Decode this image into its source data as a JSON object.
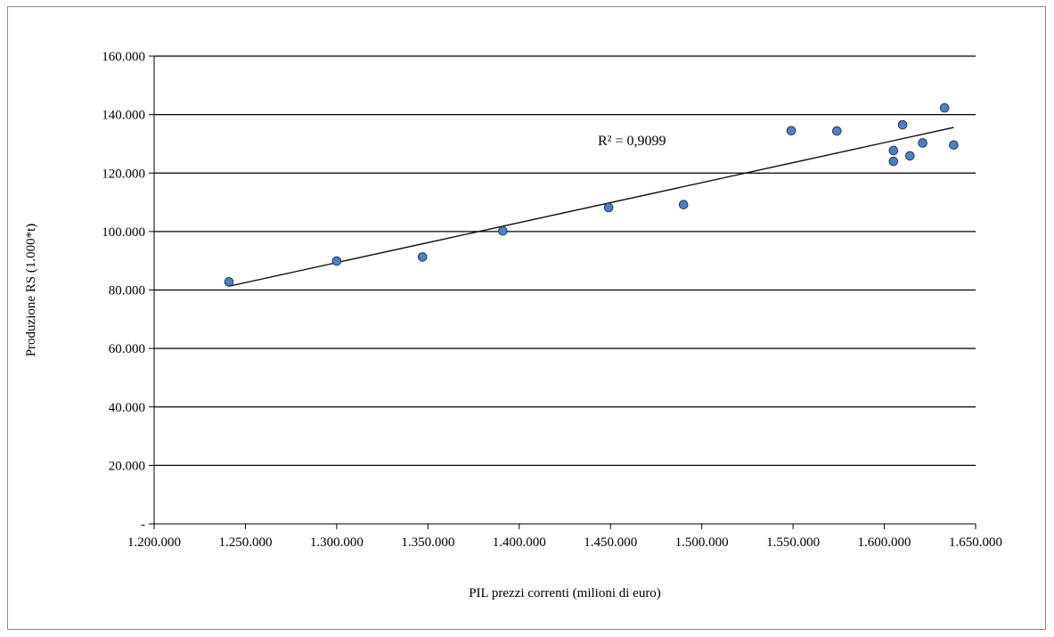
{
  "chart_data": {
    "type": "scatter",
    "xlabel": "PIL prezzi correnti (milioni di euro)",
    "ylabel": "Produzione RS (1.000*t)",
    "xlim": [
      1200000,
      1650000
    ],
    "ylim": [
      0,
      160000
    ],
    "x_tick_labels": [
      "1.200.000",
      "1.250.000",
      "1.300.000",
      "1.350.000",
      "1.400.000",
      "1.450.000",
      "1.500.000",
      "1.550.000",
      "1.600.000",
      "1.650.000"
    ],
    "y_tick_labels": [
      "-",
      "20.000",
      "40.000",
      "60.000",
      "80.000",
      "100.000",
      "120.000",
      "140.000",
      "160.000"
    ],
    "grid": "horizontal",
    "legend": "none",
    "point_color": "#4f81bd",
    "point_edge_color": "#1f3864",
    "series": [
      {
        "points": [
          {
            "x": 1241000,
            "y": 82800
          },
          {
            "x": 1300000,
            "y": 89900
          },
          {
            "x": 1347000,
            "y": 91300
          },
          {
            "x": 1391000,
            "y": 100200
          },
          {
            "x": 1449000,
            "y": 108200
          },
          {
            "x": 1490000,
            "y": 109200
          },
          {
            "x": 1549000,
            "y": 134500
          },
          {
            "x": 1574000,
            "y": 134400
          },
          {
            "x": 1605000,
            "y": 127700
          },
          {
            "x": 1605000,
            "y": 124000
          },
          {
            "x": 1610000,
            "y": 136500
          },
          {
            "x": 1614000,
            "y": 125900
          },
          {
            "x": 1621000,
            "y": 130300
          },
          {
            "x": 1633000,
            "y": 142300
          },
          {
            "x": 1638000,
            "y": 129600
          }
        ]
      }
    ],
    "trendline": {
      "type": "linear",
      "x_start": 1241000,
      "y_start": 81300,
      "x_end": 1638000,
      "y_end": 135600
    },
    "annotations": [
      {
        "text": "R² = 0,9099"
      }
    ]
  }
}
